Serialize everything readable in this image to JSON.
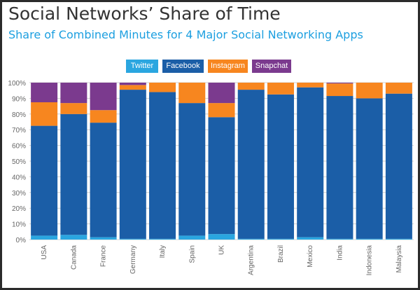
{
  "header": {
    "title": "Social Networks’ Share of Time",
    "subtitle": "Share of Combined Minutes for 4 Major Social Networking Apps"
  },
  "colors": {
    "Twitter": "#2aa6e0",
    "Facebook": "#1b5ea7",
    "Instagram": "#f7861f",
    "Snapchat": "#7b3a8e",
    "grid": "#cfcfcf",
    "axis_text": "#666666"
  },
  "chart_data": {
    "type": "bar",
    "stacked": true,
    "title": "Share of Combined Minutes for 4 Major Social Networking Apps",
    "legend_position": "top-center",
    "grid": true,
    "ylim": [
      0,
      100
    ],
    "yticks": [
      "0%",
      "10%",
      "20%",
      "30%",
      "40%",
      "50%",
      "60%",
      "70%",
      "80%",
      "90%",
      "100%"
    ],
    "categories": [
      "USA",
      "Canada",
      "France",
      "Germany",
      "Italy",
      "Spain",
      "UK",
      "Argentina",
      "Brazil",
      "Mexico",
      "India",
      "Indonesia",
      "Malaysia"
    ],
    "series": [
      {
        "name": "Twitter",
        "values": [
          2.5,
          3,
          1.5,
          0.5,
          0.5,
          2.5,
          3.5,
          0.5,
          0.5,
          1.5,
          0.5,
          0.5,
          0.5
        ]
      },
      {
        "name": "Facebook",
        "values": [
          70,
          77,
          73,
          95,
          93.5,
          84.5,
          74.5,
          95,
          92,
          95.5,
          91,
          89.5,
          92.5
        ]
      },
      {
        "name": "Instagram",
        "values": [
          15,
          7,
          8,
          3,
          6,
          13,
          9,
          4.5,
          7.5,
          3,
          8,
          10,
          7
        ]
      },
      {
        "name": "Snapchat",
        "values": [
          12.5,
          13,
          17.5,
          1.5,
          0,
          0,
          13,
          0,
          0,
          0,
          0.5,
          0,
          0
        ]
      }
    ]
  }
}
